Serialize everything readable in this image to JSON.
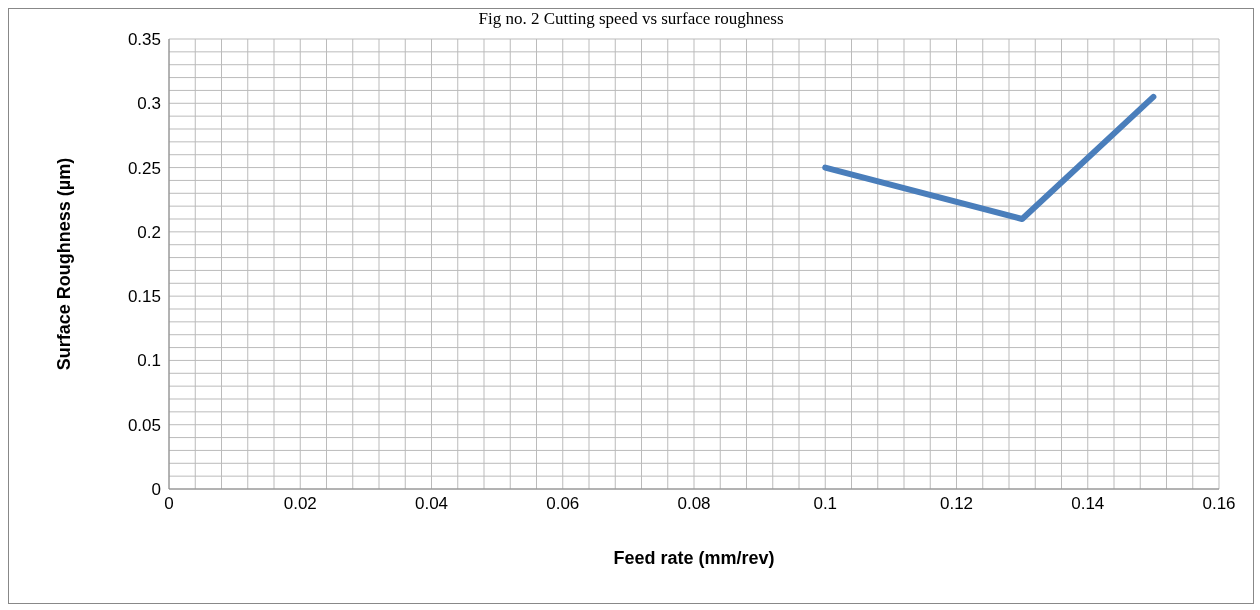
{
  "chart_data": {
    "type": "line",
    "title": "Fig no. 2 Cutting speed vs surface roughness",
    "xlabel": "Feed rate (mm/rev)",
    "ylabel": "Surface Roughness (µm)",
    "x": [
      0.1,
      0.13,
      0.15
    ],
    "series": [
      {
        "color": "#4a7ebb",
        "values": [
          0.25,
          0.21,
          0.305
        ]
      }
    ],
    "xlim": [
      0,
      0.16
    ],
    "xticks": [
      0,
      0.02,
      0.04,
      0.06,
      0.08,
      0.1,
      0.12,
      0.14,
      0.16
    ],
    "ylim": [
      0,
      0.35
    ],
    "yticks": [
      0,
      0.05,
      0.1,
      0.15,
      0.2,
      0.25,
      0.3,
      0.35
    ],
    "grid": true,
    "marker": "none",
    "line_style": "solid"
  }
}
